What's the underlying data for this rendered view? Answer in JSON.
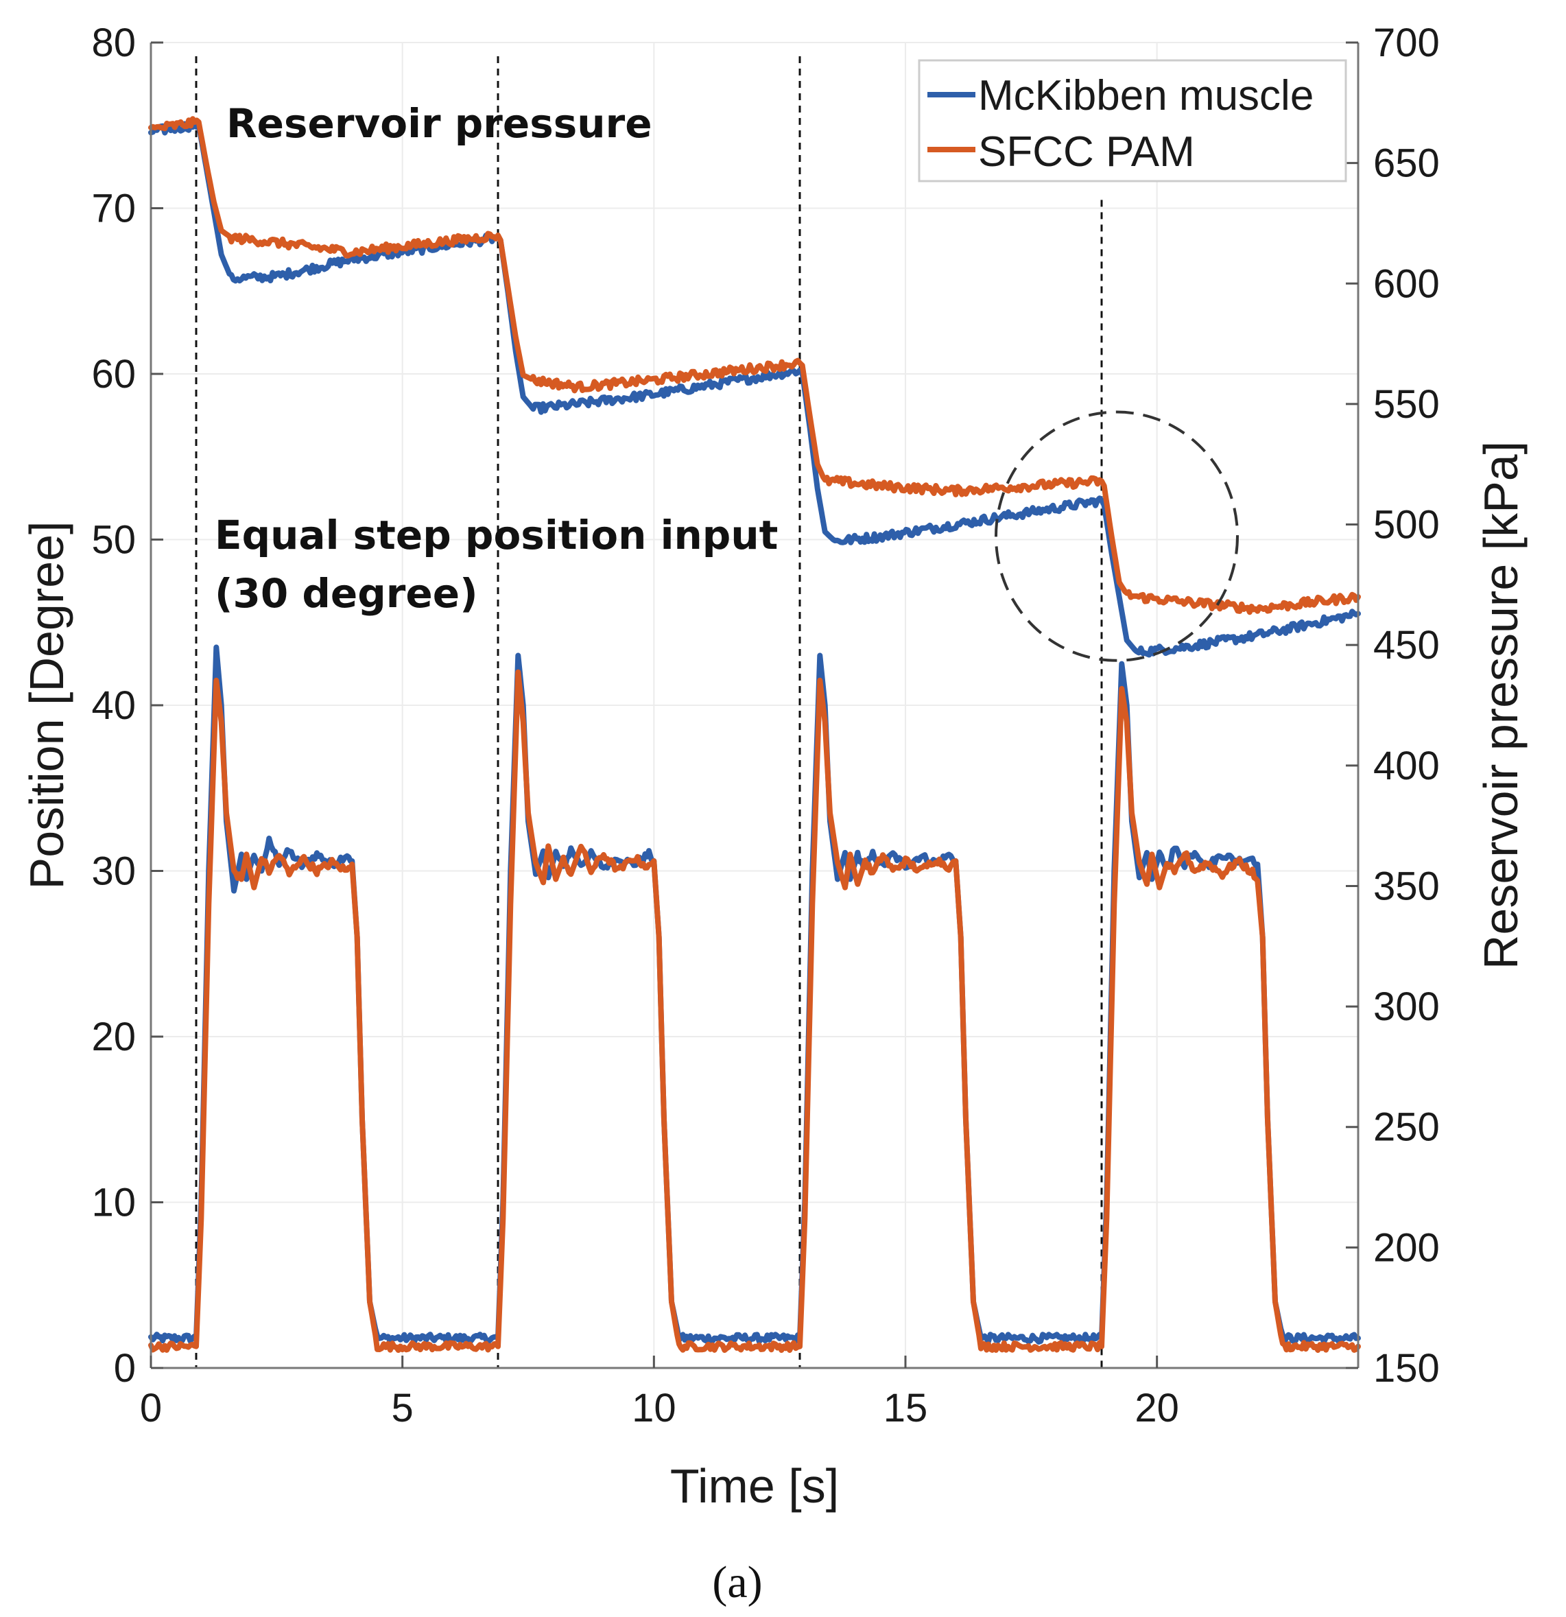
{
  "chart_data": {
    "type": "line",
    "title": "",
    "panel_label": "(a)",
    "xlabel": "Time [s]",
    "ylabel": "Position [Degree]",
    "y2label": "Reservoir pressure [kPa]",
    "xlim": [
      0,
      24
    ],
    "ylim": [
      0,
      80
    ],
    "y2lim": [
      150,
      700
    ],
    "xticks": [
      0,
      5,
      10,
      15,
      20
    ],
    "yticks": [
      0,
      10,
      20,
      30,
      40,
      50,
      60,
      70,
      80
    ],
    "y2ticks": [
      150,
      200,
      250,
      300,
      350,
      400,
      450,
      500,
      550,
      600,
      650,
      700
    ],
    "grid": true,
    "legend_position": "top-right",
    "step_times": [
      0.9,
      6.9,
      12.9,
      18.9
    ],
    "highlight_circle": {
      "center": [
        19.2,
        50.2
      ],
      "radius_x_s": 2.4,
      "radius_y_deg": 7.5
    },
    "annotations": [
      {
        "label": "Reservoir pressure",
        "anchor": [
          1.5,
          75.5
        ]
      },
      {
        "label": "Equal step position input",
        "anchor": [
          1.3,
          50.5
        ]
      },
      {
        "label": "(30 degree)",
        "anchor": [
          1.3,
          46.8
        ]
      }
    ],
    "series": [
      {
        "name": "McKibben muscle",
        "color": "#2e5faa",
        "axis": "left",
        "kind": "position",
        "x": [
          0,
          0.9,
          1.0,
          1.15,
          1.3,
          1.4,
          1.5,
          1.65,
          1.8,
          1.9,
          2.05,
          2.2,
          2.35,
          2.55,
          2.75,
          3.0,
          3.3,
          3.6,
          3.9,
          4.0,
          4.1,
          4.2,
          4.35,
          4.5,
          4.8,
          6.9,
          7.0,
          7.15,
          7.3,
          7.4,
          7.5,
          7.65,
          7.8,
          7.9,
          8.05,
          8.2,
          8.35,
          8.55,
          8.75,
          9.0,
          9.3,
          9.6,
          9.9,
          10.0,
          10.1,
          10.2,
          10.35,
          10.5,
          10.8,
          12.9,
          13.0,
          13.15,
          13.3,
          13.4,
          13.5,
          13.65,
          13.8,
          13.9,
          14.05,
          14.2,
          14.35,
          14.55,
          14.75,
          15.0,
          15.3,
          15.6,
          15.9,
          16.0,
          16.1,
          16.2,
          16.35,
          16.5,
          16.8,
          18.9,
          19.0,
          19.15,
          19.3,
          19.4,
          19.5,
          19.65,
          19.8,
          19.9,
          20.05,
          20.2,
          20.35,
          20.55,
          20.75,
          21.0,
          21.3,
          21.6,
          21.9,
          22.0,
          22.1,
          22.2,
          22.35,
          22.5,
          22.8,
          24.0
        ],
        "y": [
          1.8,
          1.8,
          10,
          30,
          43.5,
          40,
          33,
          28.8,
          31,
          29.5,
          31,
          30,
          31.8,
          30.5,
          31.2,
          30.3,
          31,
          30.4,
          31,
          30.6,
          26,
          15,
          4,
          1.8,
          1.8,
          1.8,
          10,
          30,
          43,
          40,
          33,
          29.8,
          31.2,
          29.6,
          31.1,
          30.2,
          31.3,
          30.4,
          31,
          30.2,
          30.8,
          30.4,
          31,
          30.6,
          26,
          15,
          4,
          1.8,
          1.8,
          1.8,
          10,
          30,
          43,
          40,
          33,
          29.5,
          31.1,
          29.5,
          31,
          30.1,
          31,
          30.3,
          31,
          30.3,
          30.9,
          30.5,
          31,
          30.6,
          26,
          15,
          4,
          1.8,
          1.8,
          1.8,
          10,
          30,
          42.5,
          40,
          33,
          29.6,
          31.1,
          29.5,
          31,
          30.2,
          31.4,
          30.4,
          31.2,
          30.3,
          31,
          30.6,
          30.8,
          30.4,
          26,
          15,
          4,
          1.8,
          1.8,
          1.8
        ]
      },
      {
        "name": "SFCC PAM",
        "color": "#d65a22",
        "axis": "left",
        "kind": "position",
        "x": [
          0,
          0.9,
          1.0,
          1.15,
          1.3,
          1.4,
          1.5,
          1.65,
          1.8,
          1.9,
          2.05,
          2.2,
          2.35,
          2.55,
          2.75,
          3.0,
          3.3,
          3.6,
          3.9,
          4.0,
          4.1,
          4.2,
          4.35,
          4.5,
          4.8,
          6.9,
          7.0,
          7.15,
          7.3,
          7.4,
          7.5,
          7.65,
          7.8,
          7.9,
          8.05,
          8.2,
          8.35,
          8.55,
          8.75,
          9.0,
          9.3,
          9.6,
          9.9,
          10.0,
          10.1,
          10.2,
          10.35,
          10.5,
          10.8,
          12.9,
          13.0,
          13.15,
          13.3,
          13.4,
          13.5,
          13.65,
          13.8,
          13.9,
          14.05,
          14.2,
          14.35,
          14.55,
          14.75,
          15.0,
          15.3,
          15.6,
          15.9,
          16.0,
          16.1,
          16.2,
          16.35,
          16.5,
          16.8,
          18.9,
          19.0,
          19.15,
          19.3,
          19.4,
          19.5,
          19.65,
          19.8,
          19.9,
          20.05,
          20.2,
          20.35,
          20.55,
          20.75,
          21.0,
          21.3,
          21.6,
          21.9,
          22.0,
          22.1,
          22.2,
          22.35,
          22.5,
          22.8,
          24.0
        ],
        "y": [
          1.3,
          1.3,
          9,
          28,
          41.5,
          39,
          33.5,
          30,
          29.5,
          31,
          29,
          30.8,
          30,
          31,
          29.8,
          30.8,
          30,
          30.5,
          30,
          30.4,
          26,
          15,
          4,
          1.3,
          1.3,
          1.3,
          9,
          28,
          42,
          39,
          33.5,
          30.5,
          29.3,
          31.5,
          29.5,
          30.8,
          29.8,
          31.5,
          30,
          31,
          30,
          30.8,
          30.2,
          30.6,
          26,
          15,
          4,
          1.3,
          1.3,
          1.3,
          9,
          28,
          41.5,
          39,
          33.5,
          30.5,
          29,
          31,
          29.2,
          30.6,
          29.8,
          31,
          30,
          30.6,
          30,
          30.7,
          30.2,
          30.6,
          26,
          15,
          4,
          1.3,
          1.3,
          1.3,
          9,
          28,
          41,
          39,
          33.5,
          30.5,
          29.2,
          31,
          29,
          30.5,
          29.8,
          31.1,
          30,
          30.5,
          29.8,
          30.6,
          29.9,
          29.4,
          26,
          15,
          4,
          1.3,
          1.3,
          1.3
        ]
      },
      {
        "name": "McKibben muscle",
        "color": "#2e5faa",
        "axis": "right",
        "kind": "pressure",
        "x": [
          0,
          0.95,
          1.1,
          1.25,
          1.4,
          1.6,
          2.5,
          4.0,
          6.9,
          6.95,
          7.1,
          7.25,
          7.4,
          7.6,
          8.5,
          10.0,
          12.9,
          12.95,
          13.1,
          13.25,
          13.4,
          13.6,
          14.5,
          16.0,
          18.9,
          18.95,
          19.1,
          19.25,
          19.4,
          19.6,
          20.5,
          22.0,
          24.0
        ],
        "y": [
          663,
          666,
          648,
          630,
          612,
          602,
          603,
          610,
          619,
          618,
          596,
          572,
          553,
          548,
          550,
          554,
          564,
          563,
          540,
          515,
          497,
          493,
          495,
          500,
          510,
          508,
          488,
          470,
          452,
          447,
          449,
          454,
          463
        ]
      },
      {
        "name": "SFCC PAM",
        "color": "#d65a22",
        "axis": "right",
        "kind": "pressure",
        "x": [
          0,
          0.95,
          1.1,
          1.25,
          1.4,
          1.6,
          2.5,
          4.0,
          6.9,
          6.95,
          7.1,
          7.25,
          7.4,
          7.6,
          8.5,
          10.0,
          12.9,
          12.95,
          13.1,
          13.25,
          13.4,
          13.6,
          14.5,
          16.0,
          18.9,
          18.95,
          19.1,
          19.25,
          19.4,
          19.6,
          20.5,
          22.0,
          24.0
        ],
        "y": [
          664,
          667,
          650,
          634,
          622,
          619,
          617,
          613,
          620,
          618,
          598,
          578,
          562,
          560,
          557,
          560,
          567,
          566,
          545,
          525,
          518,
          518,
          516,
          514,
          518,
          516,
          495,
          476,
          471,
          470,
          468,
          465,
          470
        ]
      }
    ]
  }
}
